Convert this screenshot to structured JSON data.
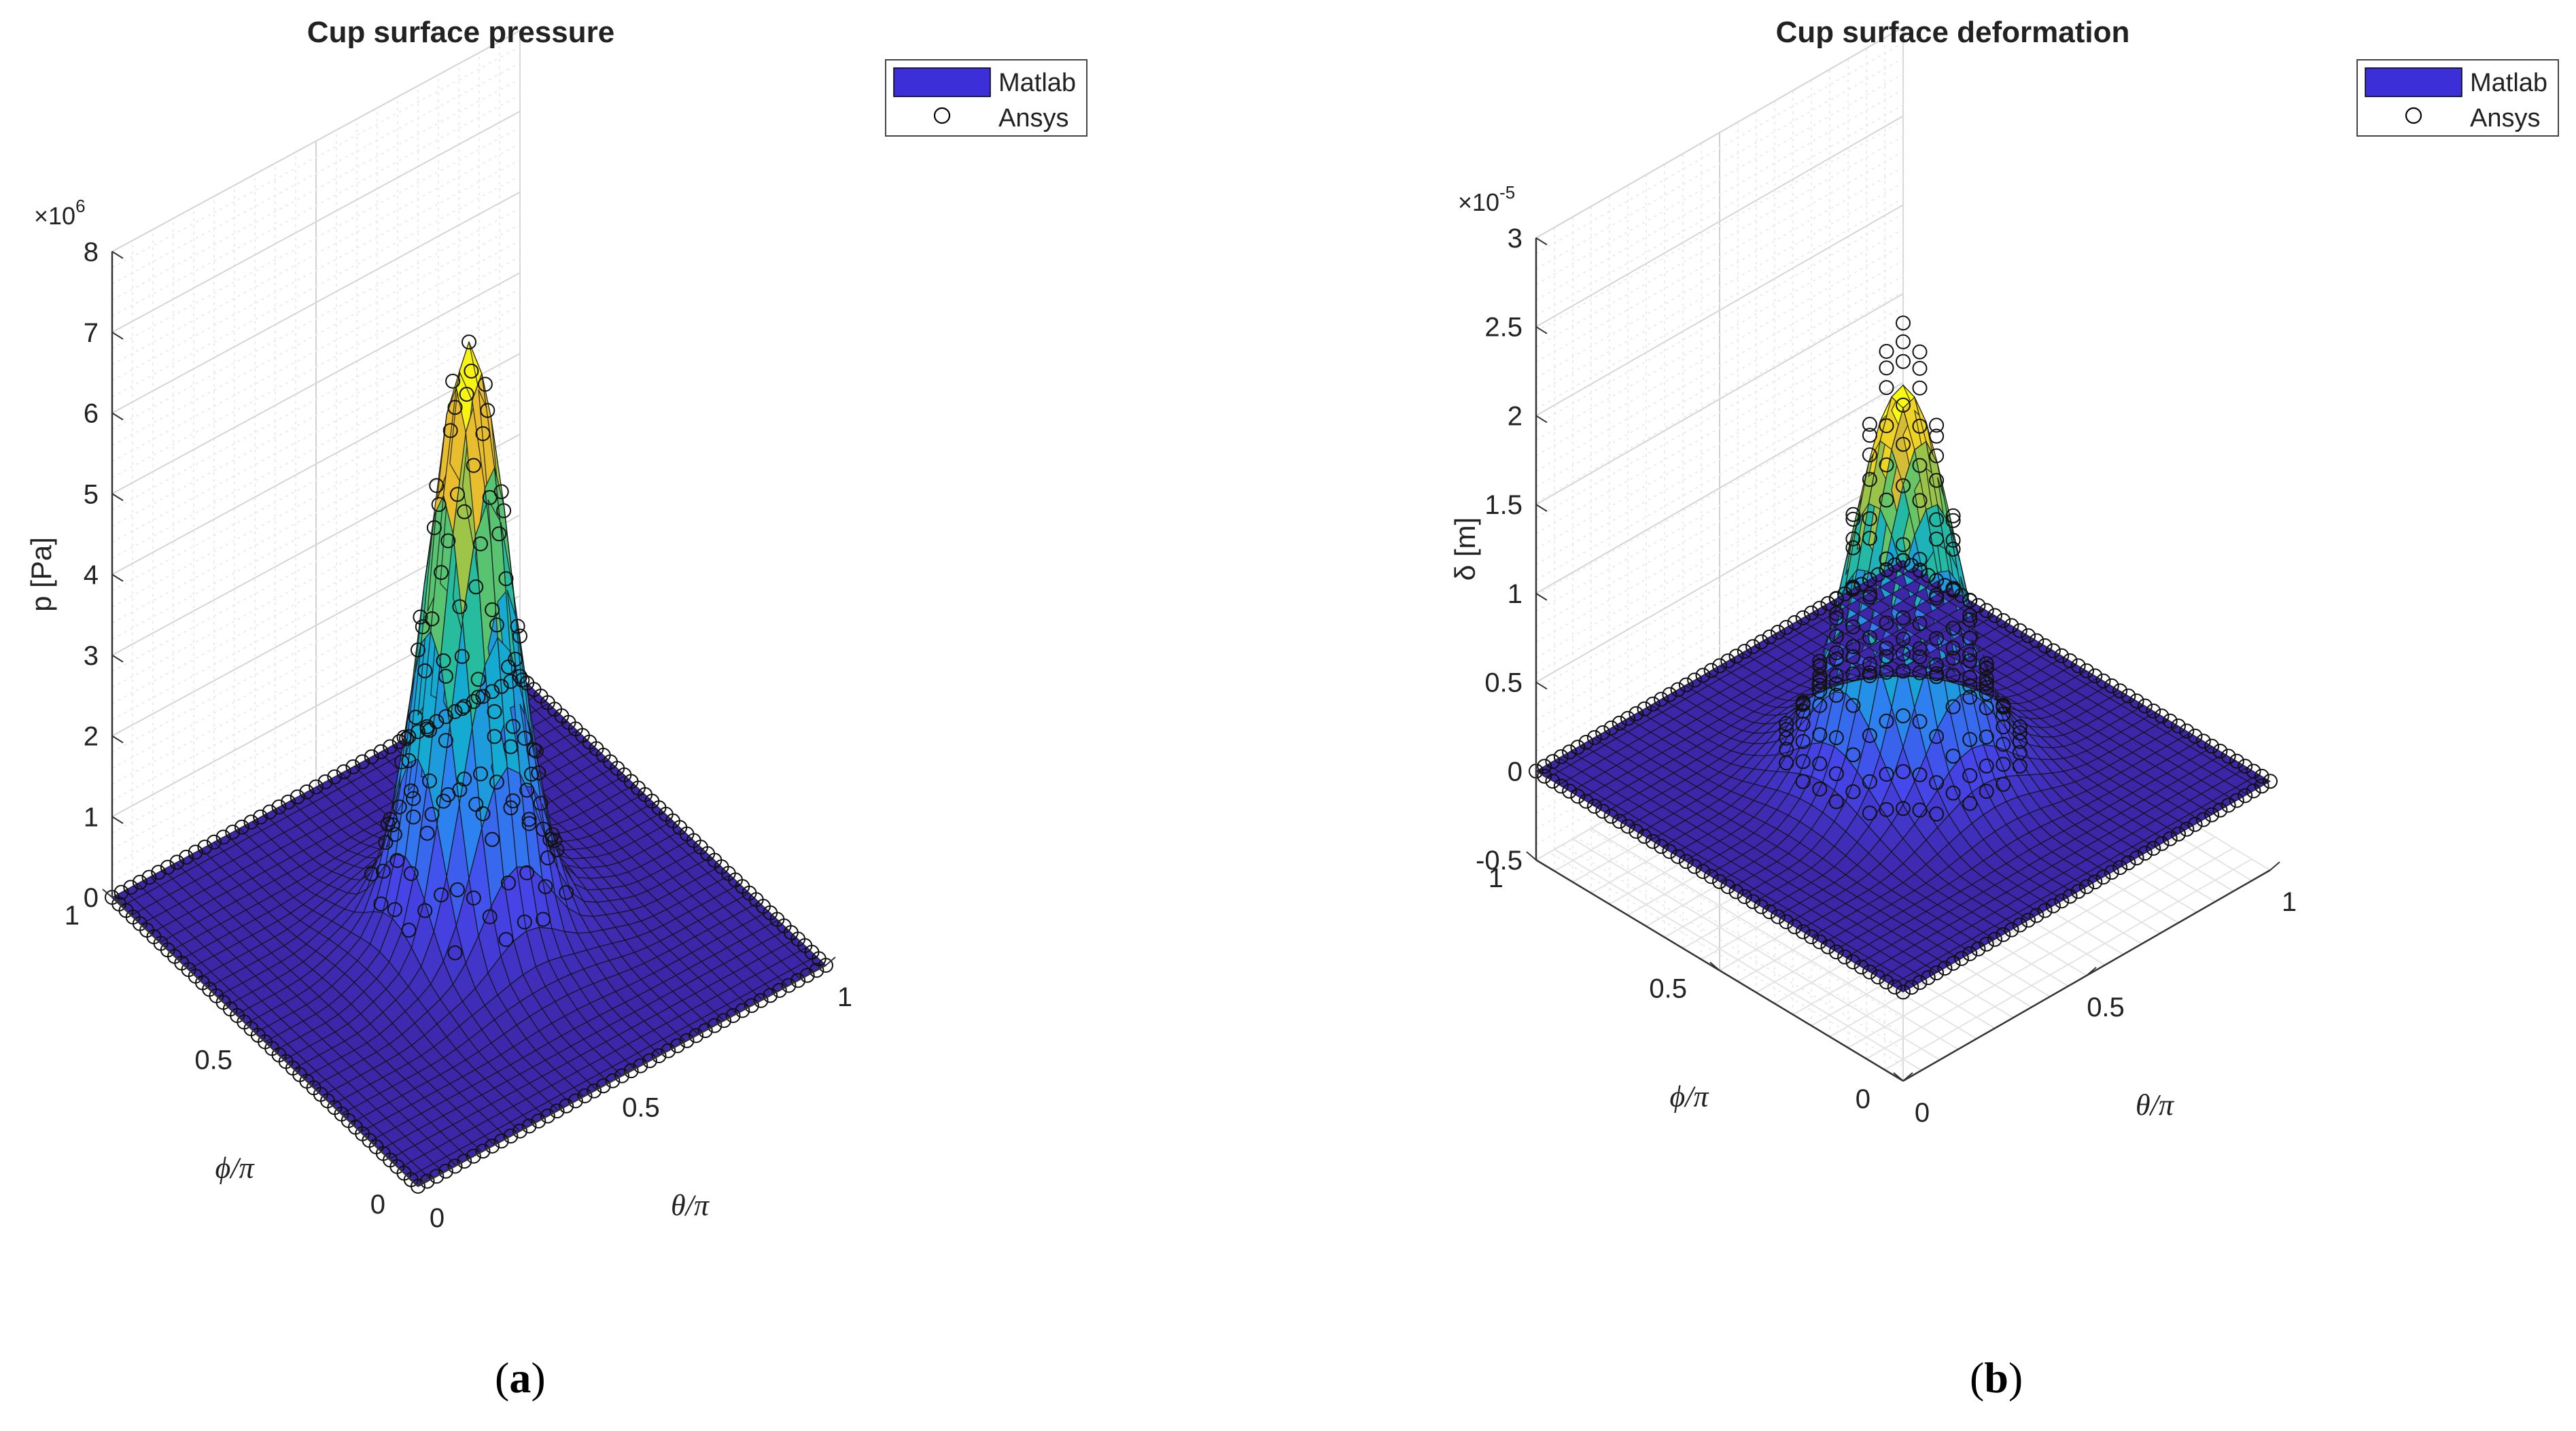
{
  "chart_data": [
    {
      "type": "surface3d",
      "panel_label": "a",
      "title": "Cup surface pressure",
      "xlabel": "θ/π",
      "ylabel": "ϕ/π",
      "zlabel": "p [Pa]",
      "z_exponent": "×10",
      "z_exponent_power": "6",
      "xlim": [
        0,
        1
      ],
      "ylim": [
        0,
        1
      ],
      "zlim": [
        0,
        8
      ],
      "x_ticks": [
        "0",
        "0.5",
        "1"
      ],
      "y_ticks": [
        "0",
        "0.5",
        "1"
      ],
      "z_ticks": [
        "0",
        "1",
        "2",
        "3",
        "4",
        "5",
        "6",
        "7",
        "8"
      ],
      "z_tick_values": [
        0,
        1,
        2,
        3,
        4,
        5,
        6,
        7,
        8
      ],
      "peak": {
        "theta": 0.5,
        "phi": 0.5,
        "value": 7.3
      },
      "base_value": 0,
      "legend": [
        {
          "label": "Matlab",
          "marker": "surface",
          "color": "#3d2fd8"
        },
        {
          "label": "Ansys",
          "marker": "circle",
          "color": "#000000"
        }
      ],
      "legend_location": "top-right"
    },
    {
      "type": "surface3d",
      "panel_label": "b",
      "title": "Cup surface deformation",
      "xlabel": "θ/π",
      "ylabel": "ϕ/π",
      "zlabel": "δ [m]",
      "z_exponent": "×10",
      "z_exponent_power": "-5",
      "xlim": [
        0,
        1
      ],
      "ylim": [
        0,
        1
      ],
      "zlim": [
        -0.5,
        3
      ],
      "x_ticks": [
        "0",
        "0.5",
        "1"
      ],
      "y_ticks": [
        "0",
        "0.5",
        "1"
      ],
      "z_ticks": [
        "-0.5",
        "0",
        "0.5",
        "1",
        "1.5",
        "2",
        "2.5",
        "3"
      ],
      "z_tick_values": [
        -0.5,
        0,
        0.5,
        1,
        1.5,
        2,
        2.5,
        3
      ],
      "peak": {
        "theta": 0.5,
        "phi": 0.5,
        "value": 2.2
      },
      "ansys_peak_value": 2.55,
      "base_value": 0,
      "legend": [
        {
          "label": "Matlab",
          "marker": "surface",
          "color": "#3d2fd8"
        },
        {
          "label": "Ansys",
          "marker": "circle",
          "color": "#000000"
        }
      ],
      "legend_location": "top-right"
    }
  ]
}
